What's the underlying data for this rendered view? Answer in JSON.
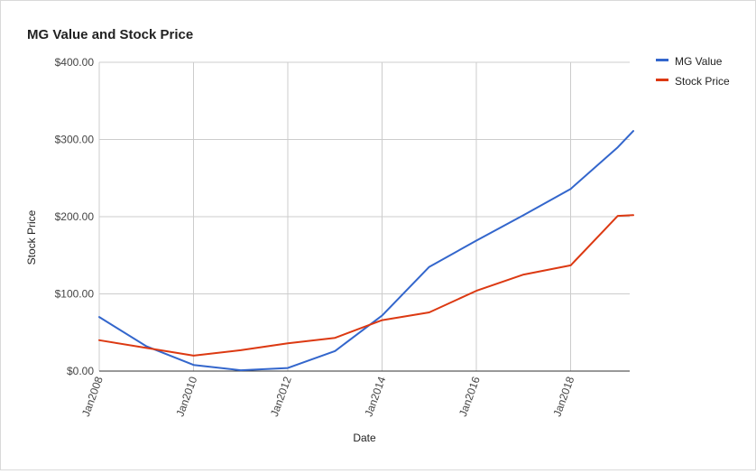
{
  "chart_data": {
    "type": "line",
    "title": "MG Value and Stock Price",
    "xlabel": "Date",
    "ylabel": "Stock Price",
    "x": [
      "2008-01",
      "2009-01",
      "2010-01",
      "2011-01",
      "2012-01",
      "2013-01",
      "2014-01",
      "2015-01",
      "2016-01",
      "2017-01",
      "2018-01",
      "2019-01",
      "2019-05"
    ],
    "x_ticks": [
      "Jan2008",
      "Jan2010",
      "Jan2012",
      "Jan2014",
      "Jan2016",
      "Jan2018"
    ],
    "y_ticks": [
      "$0.00",
      "$100.00",
      "$200.00",
      "$300.00",
      "$400.00"
    ],
    "ylim": [
      0,
      400
    ],
    "grid": true,
    "legend_position": "right",
    "series": [
      {
        "name": "MG Value",
        "color": "#3366cc",
        "values": [
          70,
          32,
          8,
          1,
          4,
          26,
          72,
          135,
          169,
          202,
          236,
          290,
          311
        ]
      },
      {
        "name": "Stock Price",
        "color": "#dc3912",
        "values": [
          40,
          30,
          20,
          27,
          36,
          43,
          66,
          76,
          104,
          125,
          137,
          201,
          202
        ]
      }
    ]
  }
}
